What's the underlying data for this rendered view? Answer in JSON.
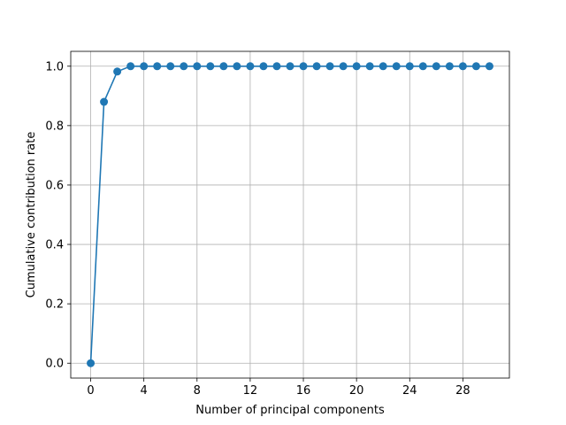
{
  "chart_data": {
    "type": "line",
    "title": "",
    "xlabel": "Number of principal components",
    "ylabel": "Cumulative contribution rate",
    "xlim": [
      -1.5,
      31.5
    ],
    "ylim": [
      -0.05,
      1.05
    ],
    "xticks": [
      0,
      4,
      8,
      12,
      16,
      20,
      24,
      28
    ],
    "yticks": [
      0.0,
      0.2,
      0.4,
      0.6,
      0.8,
      1.0
    ],
    "xtick_labels": [
      "0",
      "4",
      "8",
      "12",
      "16",
      "20",
      "24",
      "28"
    ],
    "ytick_labels": [
      "0.0",
      "0.2",
      "0.4",
      "0.6",
      "0.8",
      "1.0"
    ],
    "grid": true,
    "marker": "circle",
    "series": [
      {
        "color": "#1f77b4",
        "x": [
          0,
          1,
          2,
          3,
          4,
          5,
          6,
          7,
          8,
          9,
          10,
          11,
          12,
          13,
          14,
          15,
          16,
          17,
          18,
          19,
          20,
          21,
          22,
          23,
          24,
          25,
          26,
          27,
          28,
          29,
          30
        ],
        "y": [
          0.0,
          0.88,
          0.982,
          1.0,
          1.0,
          1.0,
          1.0,
          1.0,
          1.0,
          1.0,
          1.0,
          1.0,
          1.0,
          1.0,
          1.0,
          1.0,
          1.0,
          1.0,
          1.0,
          1.0,
          1.0,
          1.0,
          1.0,
          1.0,
          1.0,
          1.0,
          1.0,
          1.0,
          1.0,
          1.0,
          1.0
        ]
      }
    ]
  }
}
